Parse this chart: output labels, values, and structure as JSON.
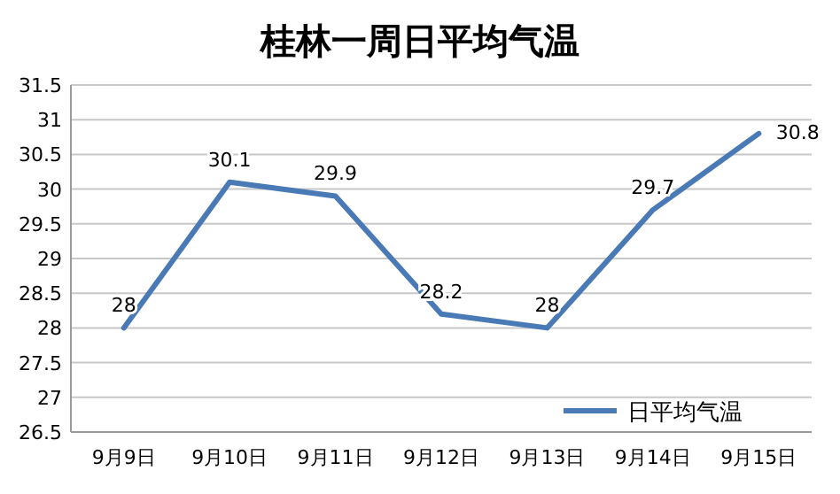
{
  "chart_data": {
    "type": "line",
    "title": "桂林一周日平均气温",
    "categories": [
      "9月9日",
      "9月10日",
      "9月11日",
      "9月12日",
      "9月13日",
      "9月14日",
      "9月15日"
    ],
    "series": [
      {
        "name": "日平均气温",
        "color": "#4a7ab5",
        "values": [
          28,
          30.1,
          29.9,
          28.2,
          28,
          29.7,
          30.8
        ]
      }
    ],
    "ylim": [
      26.5,
      31.5
    ],
    "yticks": [
      26.5,
      27,
      27.5,
      28,
      28.5,
      29,
      29.5,
      30,
      30.5,
      31,
      31.5
    ],
    "grid": "y",
    "legend": "bottom right",
    "data_labels": true,
    "marker": "none",
    "line_style": "solid"
  }
}
